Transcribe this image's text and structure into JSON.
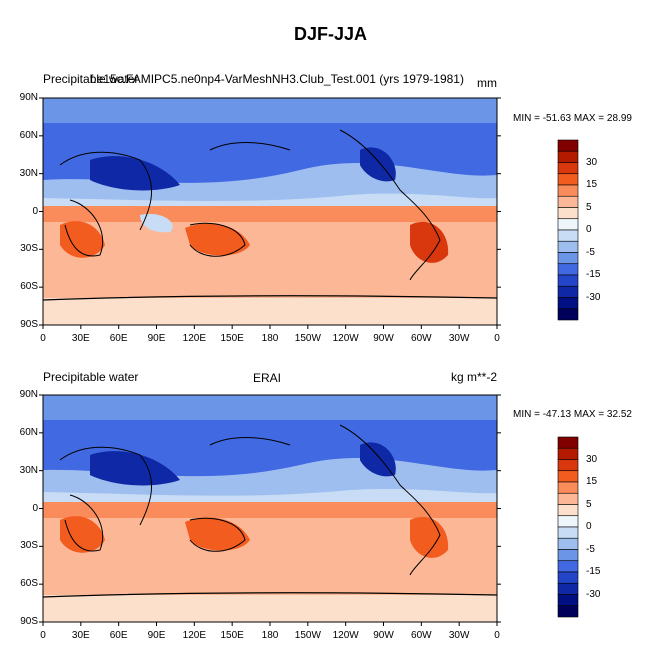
{
  "figure": {
    "title": "DJF-JJA"
  },
  "panels": [
    {
      "variable_label": "Precipitable water",
      "run_label": "f.e15c.FAMIPC5.ne0np4-VarMeshNH3.Club_Test.001 (yrs 1979-1981)",
      "units_label": "mm",
      "stats_label": "MIN = -51.63  MAX =  28.99"
    },
    {
      "variable_label": "Precipitable water",
      "run_label": "ERAI",
      "units_label": "kg m**-2",
      "stats_label": "MIN = -47.13  MAX =  32.52"
    }
  ],
  "map_axes": {
    "lat_ticks": [
      "90N",
      "60N",
      "30N",
      "0",
      "30S",
      "60S",
      "90S"
    ],
    "lon_ticks": [
      "0",
      "30E",
      "60E",
      "90E",
      "120E",
      "150E",
      "180",
      "150W",
      "120W",
      "90W",
      "60W",
      "30W",
      "0"
    ]
  },
  "colorbar": {
    "tick_labels": [
      "30",
      "15",
      "5",
      "0",
      "-5",
      "-15",
      "-30"
    ],
    "colors": [
      "#800000",
      "#b31a00",
      "#d9380f",
      "#f25c1f",
      "#fa8c5c",
      "#fcb896",
      "#fde0cc",
      "#eef6fb",
      "#c8dcf5",
      "#9ebef0",
      "#6b95e6",
      "#4169e1",
      "#2346c8",
      "#0f28a5",
      "#001082",
      "#00005a"
    ]
  }
}
